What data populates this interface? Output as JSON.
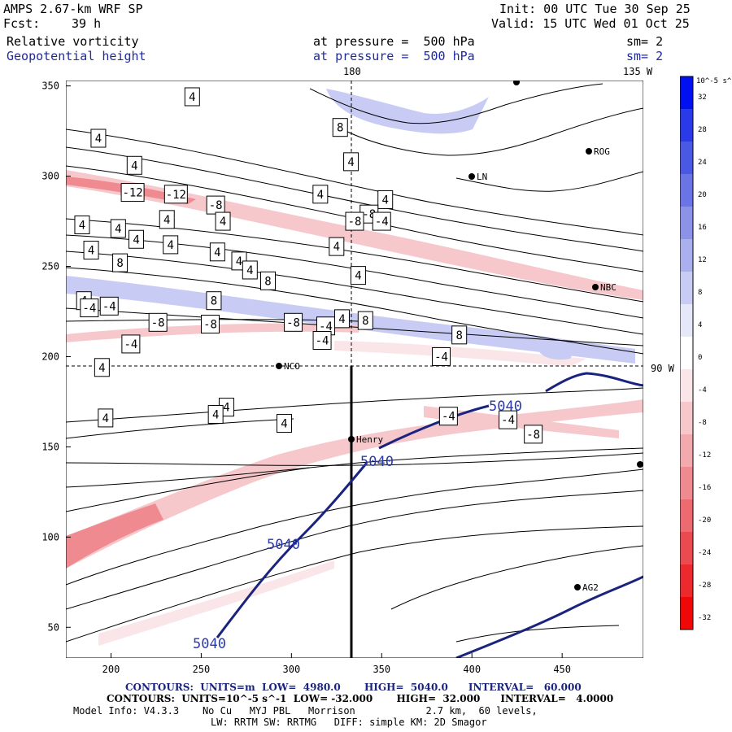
{
  "header": {
    "model": "AMPS 2.67-km WRF SP",
    "init": "Init: 00 UTC Tue 30 Sep 25",
    "fcst_label": "Fcst:",
    "fcst_value": "39 h",
    "valid": "Valid: 15 UTC Wed 01 Oct 25",
    "field1": "Relative vorticity",
    "field1_level": "at pressure =  500 hPa",
    "field1_sm": "sm= 2",
    "field2": "Geopotential height",
    "field2_level": "at pressure =  500 hPa",
    "field2_sm": "sm= 2"
  },
  "map_labels": {
    "lon_180": "180",
    "lon_135w": "135 W",
    "lat_90w": "90 W",
    "stations": [
      "NCO",
      "Henry",
      "ROG",
      "LN",
      "NBC",
      "AG2"
    ]
  },
  "footer": {
    "contours_height": "CONTOURS:  UNITS=m  LOW=  4980.0       HIGH=  5040.0      INTERVAL=   60.000",
    "contours_vort": "CONTOURS:  UNITS=10^-5 s^-1  LOW= -32.000       HIGH=  32.000      INTERVAL=   4.0000",
    "model_info": "Model Info: V4.3.3    No Cu   MYJ PBL   Morrison            2.7 km,  60 levels,",
    "model_info2": "LW: RRTM SW: RRTMG   DIFF: simple KM: 2D Smagor"
  },
  "colorbar": {
    "units": "10^-5 s^-1",
    "ticks": [
      32,
      28,
      24,
      20,
      16,
      12,
      8,
      4,
      0,
      -4,
      -8,
      -12,
      -16,
      -20,
      -24,
      -28,
      -32
    ],
    "colors": [
      "#0010f0",
      "#2a3ae8",
      "#4a58e4",
      "#6a74e4",
      "#8b92e8",
      "#aab0ee",
      "#c8ccf4",
      "#e6e8fa",
      "#ffffff",
      "#fae6e8",
      "#f6c8cc",
      "#f2aaaf",
      "#ee8a90",
      "#ec6a70",
      "#ea4a50",
      "#ec2a2e",
      "#f00808"
    ]
  },
  "chart_data": {
    "type": "contour",
    "x_ticks": [
      200,
      250,
      300,
      350,
      400,
      450
    ],
    "y_ticks": [
      50,
      100,
      150,
      200,
      250,
      300,
      350
    ],
    "xlim": [
      175,
      495
    ],
    "ylim": [
      33,
      353
    ],
    "vorticity_labels": [
      {
        "v": "4",
        "x": 193,
        "y": 321
      },
      {
        "v": "4",
        "x": 213,
        "y": 306
      },
      {
        "v": "4",
        "x": 245,
        "y": 344
      },
      {
        "v": "8",
        "x": 327,
        "y": 327
      },
      {
        "v": "4",
        "x": 333,
        "y": 308
      },
      {
        "v": "-12",
        "x": 212,
        "y": 291
      },
      {
        "v": "-12",
        "x": 236,
        "y": 290
      },
      {
        "v": "4",
        "x": 316,
        "y": 290
      },
      {
        "v": "4",
        "x": 352,
        "y": 287
      },
      {
        "v": "-8",
        "x": 258,
        "y": 284
      },
      {
        "v": "-8",
        "x": 343,
        "y": 279
      },
      {
        "v": "-8",
        "x": 335,
        "y": 275
      },
      {
        "v": "-4",
        "x": 350,
        "y": 275
      },
      {
        "v": "4",
        "x": 184,
        "y": 273
      },
      {
        "v": "4",
        "x": 204,
        "y": 271
      },
      {
        "v": "4",
        "x": 231,
        "y": 276
      },
      {
        "v": "4",
        "x": 262,
        "y": 275
      },
      {
        "v": "4",
        "x": 214,
        "y": 265
      },
      {
        "v": "4",
        "x": 233,
        "y": 262
      },
      {
        "v": "4",
        "x": 259,
        "y": 258
      },
      {
        "v": "4",
        "x": 325,
        "y": 261
      },
      {
        "v": "4",
        "x": 189,
        "y": 259
      },
      {
        "v": "8",
        "x": 205,
        "y": 252
      },
      {
        "v": "4",
        "x": 271,
        "y": 253
      },
      {
        "v": "4",
        "x": 277,
        "y": 248
      },
      {
        "v": "8",
        "x": 287,
        "y": 242
      },
      {
        "v": "4",
        "x": 337,
        "y": 245
      },
      {
        "v": "8",
        "x": 257,
        "y": 231
      },
      {
        "v": "4",
        "x": 185,
        "y": 231
      },
      {
        "v": "-4",
        "x": 188,
        "y": 227
      },
      {
        "v": "-4",
        "x": 199,
        "y": 228
      },
      {
        "v": "-4",
        "x": 211,
        "y": 207
      },
      {
        "v": "-8",
        "x": 226,
        "y": 219
      },
      {
        "v": "-8",
        "x": 255,
        "y": 218
      },
      {
        "v": "-8",
        "x": 301,
        "y": 219
      },
      {
        "v": "-4",
        "x": 319,
        "y": 217
      },
      {
        "v": "4",
        "x": 328,
        "y": 221
      },
      {
        "v": "8",
        "x": 341,
        "y": 220
      },
      {
        "v": "-4",
        "x": 317,
        "y": 209
      },
      {
        "v": "-4",
        "x": 383,
        "y": 200
      },
      {
        "v": "8",
        "x": 393,
        "y": 212
      },
      {
        "v": "4",
        "x": 195,
        "y": 194
      },
      {
        "v": "4",
        "x": 197,
        "y": 166
      },
      {
        "v": "4",
        "x": 264,
        "y": 172
      },
      {
        "v": "4",
        "x": 258,
        "y": 168
      },
      {
        "v": "4",
        "x": 296,
        "y": 163
      },
      {
        "v": "-4",
        "x": 387,
        "y": 167
      },
      {
        "v": "-4",
        "x": 420,
        "y": 165
      },
      {
        "v": "-8",
        "x": 434,
        "y": 157
      }
    ],
    "height_contour": {
      "value": "5040",
      "unit": "m"
    }
  }
}
